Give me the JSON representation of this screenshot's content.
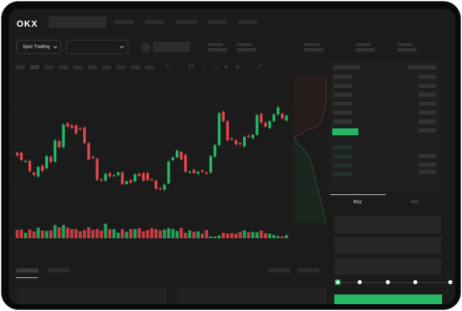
{
  "header": {
    "logo": "OKX",
    "mode_label": "Spot Trading"
  },
  "trade": {
    "buy_label": "Buy",
    "sell_label": "Sell",
    "slider_steps": [
      0,
      25,
      50,
      75,
      100
    ],
    "slider_value": 0
  },
  "colors": {
    "up": "#25b864",
    "down": "#e0474b",
    "bg": "#1b1b1b"
  },
  "icons": [
    "chevron-down-icon",
    "orderbook-both-icon",
    "orderbook-bids-icon",
    "orderbook-asks-icon",
    "indicator-icon",
    "draw-line-icon",
    "pencil-icon",
    "settings-icon",
    "fullscreen-icon"
  ],
  "chart_data": {
    "type": "candlestick",
    "xlabel": "",
    "ylabel": "",
    "candles": [
      [
        67,
        63
      ],
      [
        67,
        56
      ],
      [
        54,
        55
      ],
      [
        55,
        40
      ],
      [
        38,
        34
      ],
      [
        32,
        46
      ],
      [
        48,
        40
      ],
      [
        44,
        62
      ],
      [
        61,
        53
      ],
      [
        54,
        85
      ],
      [
        84,
        75
      ],
      [
        75,
        108
      ],
      [
        110,
        105
      ],
      [
        107,
        103
      ],
      [
        107,
        95
      ],
      [
        103,
        101
      ],
      [
        104,
        81
      ],
      [
        81,
        57
      ],
      [
        61,
        59
      ],
      [
        58,
        27
      ],
      [
        28,
        26
      ],
      [
        26,
        36
      ],
      [
        37,
        32
      ],
      [
        33,
        34
      ],
      [
        34,
        38
      ],
      [
        38,
        21
      ],
      [
        21,
        25
      ],
      [
        27,
        23
      ],
      [
        25,
        35
      ],
      [
        36,
        33
      ],
      [
        37,
        26
      ],
      [
        37,
        27
      ],
      [
        28,
        27
      ],
      [
        26,
        14
      ],
      [
        15,
        13
      ],
      [
        13,
        20
      ],
      [
        22,
        54
      ],
      [
        56,
        60
      ],
      [
        60,
        70
      ],
      [
        68,
        57
      ],
      [
        64,
        39
      ],
      [
        38,
        39
      ],
      [
        42,
        37
      ],
      [
        36,
        39
      ],
      [
        41,
        39
      ],
      [
        38,
        36
      ],
      [
        38,
        62
      ],
      [
        61,
        78
      ],
      [
        78,
        125
      ],
      [
        127,
        113
      ],
      [
        113,
        85
      ],
      [
        88,
        86
      ],
      [
        85,
        79
      ],
      [
        81,
        79
      ],
      [
        76,
        90
      ],
      [
        92,
        90
      ],
      [
        88,
        93
      ],
      [
        93,
        122
      ],
      [
        124,
        111
      ],
      [
        111,
        105
      ],
      [
        103,
        113
      ],
      [
        113,
        123
      ],
      [
        123,
        133
      ],
      [
        124,
        117
      ],
      [
        114,
        121
      ]
    ],
    "volumes": [
      36,
      38,
      24,
      38,
      30,
      46,
      34,
      32,
      34,
      58,
      48,
      58,
      46,
      40,
      40,
      30,
      36,
      48,
      36,
      40,
      34,
      64,
      40,
      40,
      24,
      40,
      28,
      40,
      40,
      44,
      30,
      36,
      44,
      40,
      34,
      38,
      44,
      40,
      32,
      44,
      24,
      34,
      28,
      30,
      20,
      36,
      8,
      8,
      12,
      24,
      20,
      22,
      20,
      28,
      34,
      26,
      28,
      26,
      34,
      22,
      20,
      14,
      10,
      8,
      14
    ]
  }
}
